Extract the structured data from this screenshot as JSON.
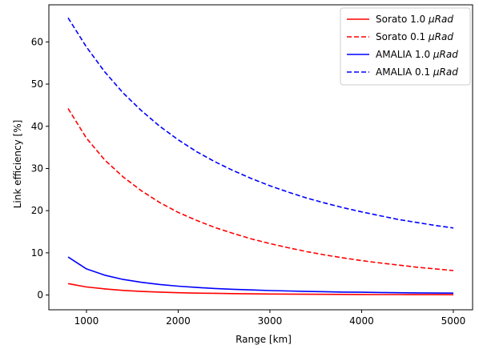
{
  "chart_data": {
    "type": "line",
    "title": "",
    "xlabel": "Range [km]",
    "ylabel": "Link efficiency [%]",
    "xlim": [
      590,
      5210
    ],
    "ylim": [
      -3.5,
      68.8
    ],
    "xticks": [
      1000,
      2000,
      3000,
      4000,
      5000
    ],
    "yticks": [
      0,
      10,
      20,
      30,
      40,
      50,
      60
    ],
    "grid": false,
    "legend_position": "top-right",
    "x": [
      800,
      1000,
      1200,
      1400,
      1600,
      1800,
      2000,
      2200,
      2400,
      2600,
      2800,
      3000,
      3200,
      3400,
      3600,
      3800,
      4000,
      4200,
      4400,
      4600,
      4800,
      5000
    ],
    "series": [
      {
        "name": "Sorato 1.0 μRad",
        "legend_main": "Sorato 1.0 ",
        "legend_unit": "μRad",
        "color": "#ff0000",
        "style": "solid",
        "values": [
          2.7,
          1.9,
          1.45,
          1.1,
          0.85,
          0.7,
          0.55,
          0.45,
          0.4,
          0.33,
          0.28,
          0.24,
          0.21,
          0.18,
          0.16,
          0.14,
          0.12,
          0.11,
          0.1,
          0.09,
          0.08,
          0.07
        ]
      },
      {
        "name": "Sorato 0.1 μRad",
        "legend_main": "Sorato 0.1 ",
        "legend_unit": "μRad",
        "color": "#ff0000",
        "style": "dashed",
        "values": [
          44.2,
          37.2,
          32.0,
          28.0,
          24.7,
          21.9,
          19.6,
          17.7,
          16.0,
          14.6,
          13.3,
          12.2,
          11.2,
          10.3,
          9.5,
          8.8,
          8.15,
          7.6,
          7.1,
          6.6,
          6.2,
          5.8
        ]
      },
      {
        "name": "AMALIA 1.0 μRad",
        "legend_main": "AMALIA 1.0 ",
        "legend_unit": "μRad",
        "color": "#0000ff",
        "style": "solid",
        "values": [
          9.0,
          6.2,
          4.7,
          3.7,
          3.0,
          2.5,
          2.1,
          1.8,
          1.55,
          1.35,
          1.2,
          1.05,
          0.95,
          0.85,
          0.78,
          0.7,
          0.65,
          0.6,
          0.55,
          0.5,
          0.47,
          0.44
        ]
      },
      {
        "name": "AMALIA 0.1 μRad",
        "legend_main": "AMALIA 0.1 ",
        "legend_unit": "μRad",
        "color": "#0000ff",
        "style": "dashed",
        "values": [
          65.7,
          58.8,
          52.9,
          47.9,
          43.7,
          40.0,
          36.8,
          34.0,
          31.6,
          29.5,
          27.6,
          25.9,
          24.4,
          23.0,
          21.8,
          20.7,
          19.7,
          18.8,
          17.9,
          17.2,
          16.5,
          15.9
        ]
      }
    ]
  }
}
